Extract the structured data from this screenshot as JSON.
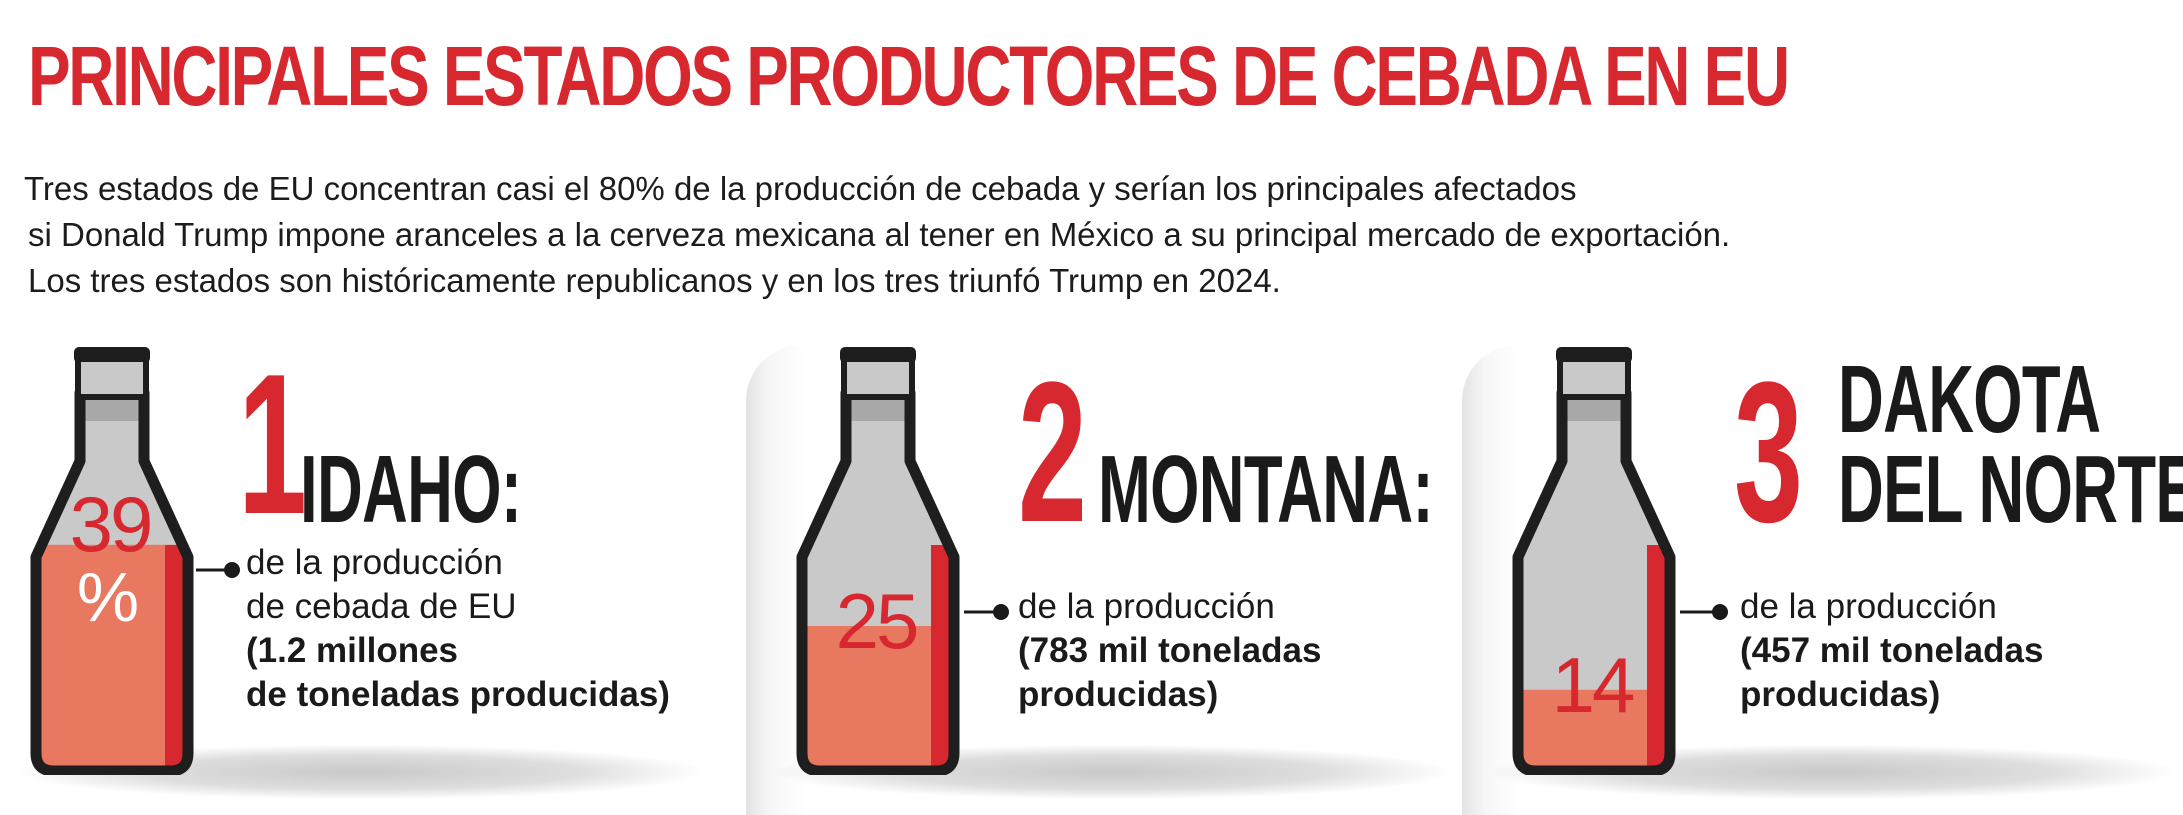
{
  "title": "PRINCIPALES ESTADOS PRODUCTORES DE CEBADA EN EU",
  "intro": [
    "Tres estados de EU concentran casi el 80% de la producción de cebada y serían los principales afectados",
    "si Donald Trump impone aranceles a la cerveza mexicana al tener en México a su principal mercado de exportación.",
    "Los tres estados son históricamente republicanos y en los tres triunfó Trump en 2024."
  ],
  "colors": {
    "accent": "#d7282f",
    "fill": "#e8785f",
    "glass": "#c9c9c9",
    "outline": "#1e1e1e"
  },
  "chart_data": {
    "type": "bar",
    "categories": [
      "IDAHO",
      "MONTANA",
      "DAKOTA DEL NORTE"
    ],
    "values": [
      39,
      25,
      14
    ],
    "unit": "%",
    "items": [
      {
        "rank": "1",
        "state_lines": [
          "IDAHO:"
        ],
        "value": 39,
        "value_label": "39",
        "unit_label": "%",
        "desc": [
          "de la producción",
          "de cebada de EU"
        ],
        "detail": [
          "(1.2 millones",
          "de toneladas producidas)"
        ]
      },
      {
        "rank": "2",
        "state_lines": [
          "MONTANA:"
        ],
        "value": 25,
        "value_label": "25",
        "unit_label": "",
        "desc": [
          "de la producción"
        ],
        "detail": [
          "(783 mil toneladas",
          "producidas)"
        ]
      },
      {
        "rank": "3",
        "state_lines": [
          "DAKOTA",
          "DEL NORTE:"
        ],
        "value": 14,
        "value_label": "14",
        "unit_label": "",
        "desc": [
          "de la producción"
        ],
        "detail": [
          "(457 mil toneladas",
          "producidas)"
        ]
      }
    ]
  }
}
